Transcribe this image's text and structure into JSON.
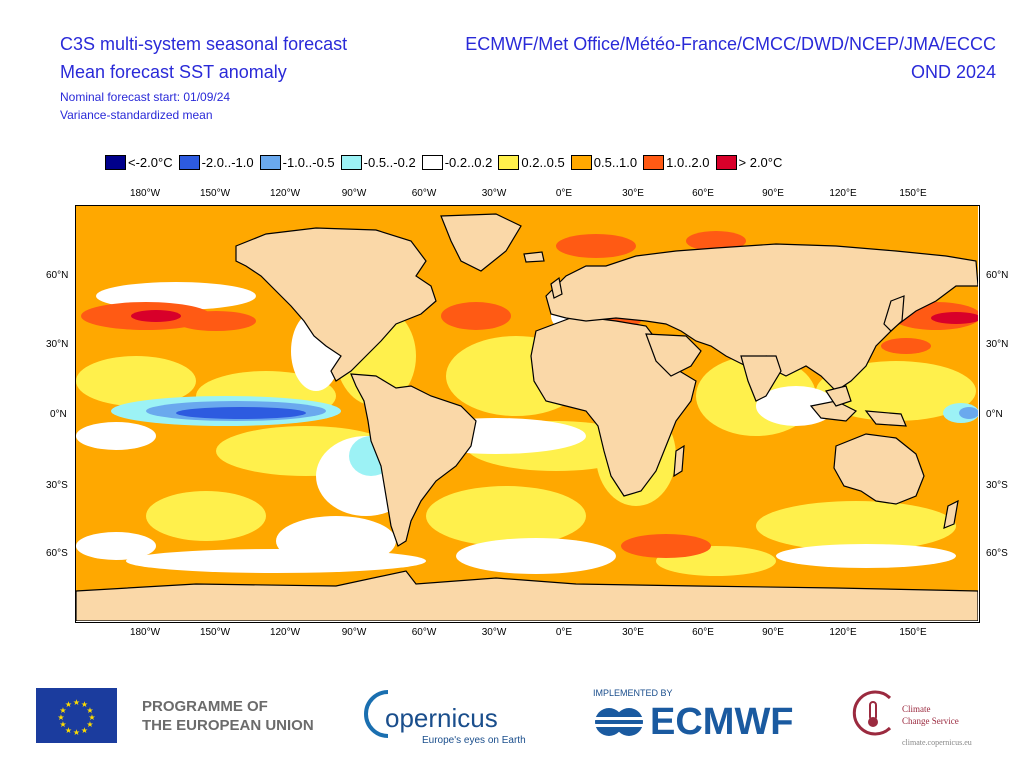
{
  "header": {
    "title_line1": "C3S multi-system seasonal forecast",
    "title_line2": "Mean forecast SST anomaly",
    "subtitle_start": "Nominal forecast start: 01/09/24",
    "subtitle_method": "Variance-standardized mean",
    "centres": "ECMWF/Met Office/Météo-France/CMCC/DWD/NCEP/JMA/ECCC",
    "period": "OND 2024"
  },
  "legend": [
    {
      "label": "<-2.0°C",
      "color": "#00008b"
    },
    {
      "label": "-2.0..-1.0",
      "color": "#2d5be0"
    },
    {
      "label": "-1.0..-0.5",
      "color": "#6aa9ee"
    },
    {
      "label": "-0.5..-0.2",
      "color": "#9cf2f5"
    },
    {
      "label": "-0.2..0.2",
      "color": "#ffffff"
    },
    {
      "label": "0.2..0.5",
      "color": "#fff04c"
    },
    {
      "label": "0.5..1.0",
      "color": "#ffa800"
    },
    {
      "label": "1.0..2.0",
      "color": "#ff5a14"
    },
    {
      "label": "> 2.0°C",
      "color": "#d8002a"
    }
  ],
  "map": {
    "lon_labels": [
      "180°W",
      "150°W",
      "120°W",
      "90°W",
      "60°W",
      "30°W",
      "0°E",
      "30°E",
      "60°E",
      "90°E",
      "120°E",
      "150°E"
    ],
    "lat_labels": [
      "60°N",
      "30°N",
      "0°N",
      "30°S",
      "60°S"
    ],
    "land_color": "#fad8a8",
    "ocean_base_color": "#ffa800"
  },
  "footer": {
    "programme_line1": "PROGRAMME OF",
    "programme_line2": "THE EUROPEAN UNION",
    "copernicus_name": "opernicus",
    "copernicus_tagline": "Europe's eyes on Earth",
    "implemented_by": "IMPLEMENTED BY",
    "ecmwf": "ECMWF",
    "ccs_line1": "Climate",
    "ccs_line2": "Change Service",
    "ccs_url": "climate.copernicus.eu"
  }
}
